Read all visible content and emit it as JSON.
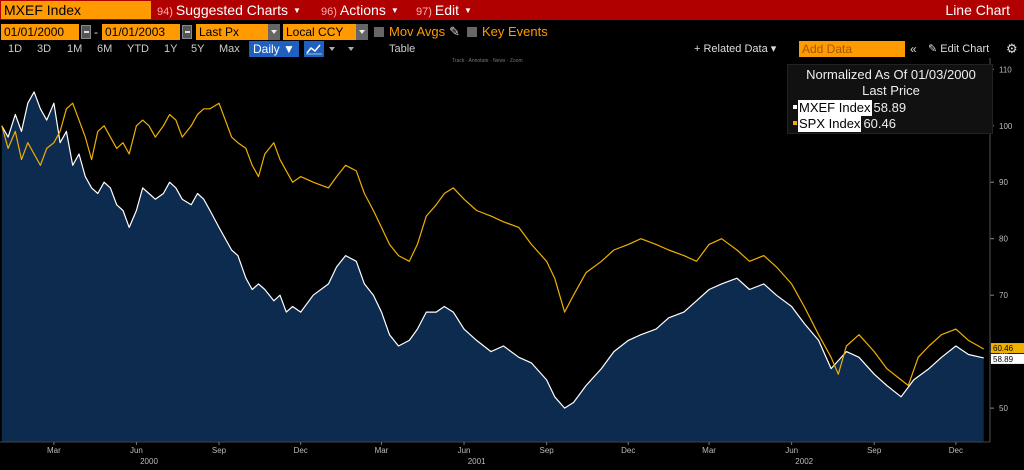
{
  "toolbar": {
    "ticker": "MXEF Index",
    "menus": [
      {
        "num": "94)",
        "label": "Suggested Charts"
      },
      {
        "num": "96)",
        "label": "Actions"
      },
      {
        "num": "97)",
        "label": "Edit"
      }
    ],
    "chart_type": "Line Chart"
  },
  "inputs": {
    "start_date": "01/01/2000",
    "dash": "-",
    "end_date": "01/01/2003",
    "field": "Last Px",
    "currency": "Local CCY",
    "mov_avgs": "Mov Avgs",
    "key_events": "Key Events"
  },
  "periods": [
    "1D",
    "3D",
    "1M",
    "6M",
    "YTD",
    "1Y",
    "5Y",
    "Max"
  ],
  "period_selected": "Daily ▼",
  "table_label": "Table",
  "related_data": "+ Related Data ▾",
  "add_data_placeholder": "Add Data",
  "edit_chart": "✎ Edit Chart",
  "tool_strip": "Track · Annotate · News · Zoom",
  "legend": {
    "title": "Normalized As Of 01/03/2000",
    "subtitle": "Last Price",
    "entries": [
      {
        "name": "MXEF Index",
        "value": "58.89",
        "color": "#ffffff"
      },
      {
        "name": "SPX Index",
        "value": "60.46",
        "color": "#f0b000"
      }
    ]
  },
  "chart_data": {
    "type": "line",
    "title": "",
    "ylim": [
      44,
      112
    ],
    "xlim": [
      "2000-01-01",
      "2003-01-08"
    ],
    "y_ticks": [
      50,
      60,
      70,
      80,
      90,
      100,
      110
    ],
    "x_month_ticks": [
      {
        "label": "Mar",
        "date": "2000-03-01"
      },
      {
        "label": "Jun",
        "date": "2000-06-01"
      },
      {
        "label": "Sep",
        "date": "2000-09-01"
      },
      {
        "label": "Dec",
        "date": "2000-12-01"
      },
      {
        "label": "Mar",
        "date": "2001-03-01"
      },
      {
        "label": "Jun",
        "date": "2001-06-01"
      },
      {
        "label": "Sep",
        "date": "2001-09-01"
      },
      {
        "label": "Dec",
        "date": "2001-12-01"
      },
      {
        "label": "Mar",
        "date": "2002-03-01"
      },
      {
        "label": "Jun",
        "date": "2002-06-01"
      },
      {
        "label": "Sep",
        "date": "2002-09-01"
      },
      {
        "label": "Dec",
        "date": "2002-12-01"
      }
    ],
    "x_year_ticks": [
      {
        "label": "2000",
        "date": "2000-06-15"
      },
      {
        "label": "2001",
        "date": "2001-06-15"
      },
      {
        "label": "2002",
        "date": "2002-06-15"
      }
    ],
    "series": [
      {
        "name": "MXEF Index",
        "color": "#ffffff",
        "fill": "#0d2a4f",
        "last_label": "58.89",
        "points": [
          [
            "2000-01-03",
            100
          ],
          [
            "2000-01-10",
            98
          ],
          [
            "2000-01-18",
            102
          ],
          [
            "2000-01-25",
            99
          ],
          [
            "2000-02-01",
            104
          ],
          [
            "2000-02-08",
            106
          ],
          [
            "2000-02-15",
            103
          ],
          [
            "2000-02-22",
            101
          ],
          [
            "2000-03-01",
            104
          ],
          [
            "2000-03-08",
            97
          ],
          [
            "2000-03-15",
            99
          ],
          [
            "2000-03-22",
            93
          ],
          [
            "2000-03-29",
            95
          ],
          [
            "2000-04-05",
            91
          ],
          [
            "2000-04-12",
            89
          ],
          [
            "2000-04-19",
            88
          ],
          [
            "2000-04-26",
            90
          ],
          [
            "2000-05-03",
            89
          ],
          [
            "2000-05-10",
            86
          ],
          [
            "2000-05-17",
            85
          ],
          [
            "2000-05-24",
            82
          ],
          [
            "2000-06-01",
            85
          ],
          [
            "2000-06-08",
            89
          ],
          [
            "2000-06-15",
            88
          ],
          [
            "2000-06-22",
            87
          ],
          [
            "2000-07-01",
            88
          ],
          [
            "2000-07-08",
            90
          ],
          [
            "2000-07-15",
            89
          ],
          [
            "2000-07-22",
            87
          ],
          [
            "2000-08-01",
            86
          ],
          [
            "2000-08-08",
            88
          ],
          [
            "2000-08-15",
            87
          ],
          [
            "2000-08-22",
            85
          ],
          [
            "2000-09-01",
            82
          ],
          [
            "2000-09-08",
            80
          ],
          [
            "2000-09-15",
            78
          ],
          [
            "2000-09-22",
            77
          ],
          [
            "2000-10-01",
            73
          ],
          [
            "2000-10-08",
            71
          ],
          [
            "2000-10-15",
            72
          ],
          [
            "2000-10-22",
            71
          ],
          [
            "2000-11-01",
            69
          ],
          [
            "2000-11-08",
            70
          ],
          [
            "2000-11-15",
            67
          ],
          [
            "2000-11-22",
            68
          ],
          [
            "2000-12-01",
            67
          ],
          [
            "2000-12-15",
            70
          ],
          [
            "2001-01-01",
            72
          ],
          [
            "2001-01-10",
            75
          ],
          [
            "2001-01-20",
            77
          ],
          [
            "2001-02-01",
            76
          ],
          [
            "2001-02-10",
            72
          ],
          [
            "2001-02-20",
            70
          ],
          [
            "2001-03-01",
            67
          ],
          [
            "2001-03-10",
            63
          ],
          [
            "2001-03-20",
            61
          ],
          [
            "2001-04-01",
            62
          ],
          [
            "2001-04-10",
            64
          ],
          [
            "2001-04-20",
            67
          ],
          [
            "2001-05-01",
            67
          ],
          [
            "2001-05-10",
            68
          ],
          [
            "2001-05-20",
            67
          ],
          [
            "2001-06-01",
            64
          ],
          [
            "2001-06-15",
            62
          ],
          [
            "2001-07-01",
            60
          ],
          [
            "2001-07-15",
            61
          ],
          [
            "2001-08-01",
            59
          ],
          [
            "2001-08-15",
            58
          ],
          [
            "2001-09-01",
            55
          ],
          [
            "2001-09-10",
            52
          ],
          [
            "2001-09-21",
            50
          ],
          [
            "2001-10-01",
            51
          ],
          [
            "2001-10-15",
            54
          ],
          [
            "2001-11-01",
            57
          ],
          [
            "2001-11-15",
            60
          ],
          [
            "2001-12-01",
            62
          ],
          [
            "2001-12-15",
            63
          ],
          [
            "2002-01-01",
            64
          ],
          [
            "2002-01-15",
            66
          ],
          [
            "2002-02-01",
            67
          ],
          [
            "2002-02-15",
            69
          ],
          [
            "2002-03-01",
            71
          ],
          [
            "2002-03-15",
            72
          ],
          [
            "2002-04-01",
            73
          ],
          [
            "2002-04-15",
            71
          ],
          [
            "2002-05-01",
            72
          ],
          [
            "2002-05-15",
            70
          ],
          [
            "2002-06-01",
            68
          ],
          [
            "2002-06-15",
            65
          ],
          [
            "2002-07-01",
            62
          ],
          [
            "2002-07-15",
            57
          ],
          [
            "2002-08-01",
            60
          ],
          [
            "2002-08-15",
            59
          ],
          [
            "2002-09-01",
            56
          ],
          [
            "2002-09-15",
            54
          ],
          [
            "2002-10-01",
            52
          ],
          [
            "2002-10-15",
            55
          ],
          [
            "2002-11-01",
            57
          ],
          [
            "2002-11-15",
            59
          ],
          [
            "2002-12-01",
            61
          ],
          [
            "2002-12-15",
            59.5
          ],
          [
            "2003-01-01",
            58.89
          ]
        ]
      },
      {
        "name": "SPX Index",
        "color": "#f0b000",
        "last_label": "60.46",
        "points": [
          [
            "2000-01-03",
            100
          ],
          [
            "2000-01-10",
            96
          ],
          [
            "2000-01-18",
            99
          ],
          [
            "2000-01-25",
            94
          ],
          [
            "2000-02-01",
            97
          ],
          [
            "2000-02-08",
            95
          ],
          [
            "2000-02-15",
            93
          ],
          [
            "2000-02-22",
            96
          ],
          [
            "2000-03-01",
            97
          ],
          [
            "2000-03-08",
            99
          ],
          [
            "2000-03-15",
            103
          ],
          [
            "2000-03-22",
            104
          ],
          [
            "2000-03-29",
            101
          ],
          [
            "2000-04-05",
            98
          ],
          [
            "2000-04-12",
            94
          ],
          [
            "2000-04-19",
            99
          ],
          [
            "2000-04-26",
            100
          ],
          [
            "2000-05-03",
            98
          ],
          [
            "2000-05-10",
            96
          ],
          [
            "2000-05-17",
            97
          ],
          [
            "2000-05-24",
            95
          ],
          [
            "2000-06-01",
            100
          ],
          [
            "2000-06-08",
            101
          ],
          [
            "2000-06-15",
            100
          ],
          [
            "2000-06-22",
            98
          ],
          [
            "2000-07-01",
            100
          ],
          [
            "2000-07-08",
            102
          ],
          [
            "2000-07-15",
            101
          ],
          [
            "2000-07-22",
            98
          ],
          [
            "2000-08-01",
            100
          ],
          [
            "2000-08-08",
            102
          ],
          [
            "2000-08-15",
            103
          ],
          [
            "2000-08-22",
            103
          ],
          [
            "2000-09-01",
            104
          ],
          [
            "2000-09-08",
            101
          ],
          [
            "2000-09-15",
            98
          ],
          [
            "2000-09-22",
            97
          ],
          [
            "2000-10-01",
            96
          ],
          [
            "2000-10-08",
            93
          ],
          [
            "2000-10-15",
            91
          ],
          [
            "2000-10-22",
            95
          ],
          [
            "2000-11-01",
            97
          ],
          [
            "2000-11-08",
            94
          ],
          [
            "2000-11-15",
            92
          ],
          [
            "2000-11-22",
            90
          ],
          [
            "2000-12-01",
            91
          ],
          [
            "2000-12-15",
            90
          ],
          [
            "2001-01-01",
            89
          ],
          [
            "2001-01-10",
            91
          ],
          [
            "2001-01-20",
            93
          ],
          [
            "2001-02-01",
            92
          ],
          [
            "2001-02-10",
            88
          ],
          [
            "2001-02-20",
            85
          ],
          [
            "2001-03-01",
            82
          ],
          [
            "2001-03-10",
            79
          ],
          [
            "2001-03-20",
            77
          ],
          [
            "2001-04-01",
            76
          ],
          [
            "2001-04-10",
            79
          ],
          [
            "2001-04-20",
            84
          ],
          [
            "2001-05-01",
            86
          ],
          [
            "2001-05-10",
            88
          ],
          [
            "2001-05-20",
            89
          ],
          [
            "2001-06-01",
            87
          ],
          [
            "2001-06-15",
            85
          ],
          [
            "2001-07-01",
            84
          ],
          [
            "2001-07-15",
            83
          ],
          [
            "2001-08-01",
            82
          ],
          [
            "2001-08-15",
            79
          ],
          [
            "2001-09-01",
            76
          ],
          [
            "2001-09-10",
            73
          ],
          [
            "2001-09-21",
            67
          ],
          [
            "2001-10-01",
            70
          ],
          [
            "2001-10-15",
            74
          ],
          [
            "2001-11-01",
            76
          ],
          [
            "2001-11-15",
            78
          ],
          [
            "2001-12-01",
            79
          ],
          [
            "2001-12-15",
            80
          ],
          [
            "2002-01-01",
            79
          ],
          [
            "2002-01-15",
            78
          ],
          [
            "2002-02-01",
            77
          ],
          [
            "2002-02-15",
            76
          ],
          [
            "2002-03-01",
            79
          ],
          [
            "2002-03-15",
            80
          ],
          [
            "2002-04-01",
            78
          ],
          [
            "2002-04-15",
            76
          ],
          [
            "2002-05-01",
            77
          ],
          [
            "2002-05-15",
            75
          ],
          [
            "2002-06-01",
            72
          ],
          [
            "2002-06-15",
            68
          ],
          [
            "2002-07-01",
            63
          ],
          [
            "2002-07-15",
            59
          ],
          [
            "2002-07-23",
            56
          ],
          [
            "2002-08-01",
            61
          ],
          [
            "2002-08-15",
            63
          ],
          [
            "2002-09-01",
            60
          ],
          [
            "2002-09-15",
            57
          ],
          [
            "2002-10-01",
            55
          ],
          [
            "2002-10-09",
            54
          ],
          [
            "2002-10-20",
            59
          ],
          [
            "2002-11-01",
            61
          ],
          [
            "2002-11-15",
            63
          ],
          [
            "2002-12-01",
            64
          ],
          [
            "2002-12-15",
            62
          ],
          [
            "2003-01-01",
            60.46
          ]
        ]
      }
    ]
  }
}
